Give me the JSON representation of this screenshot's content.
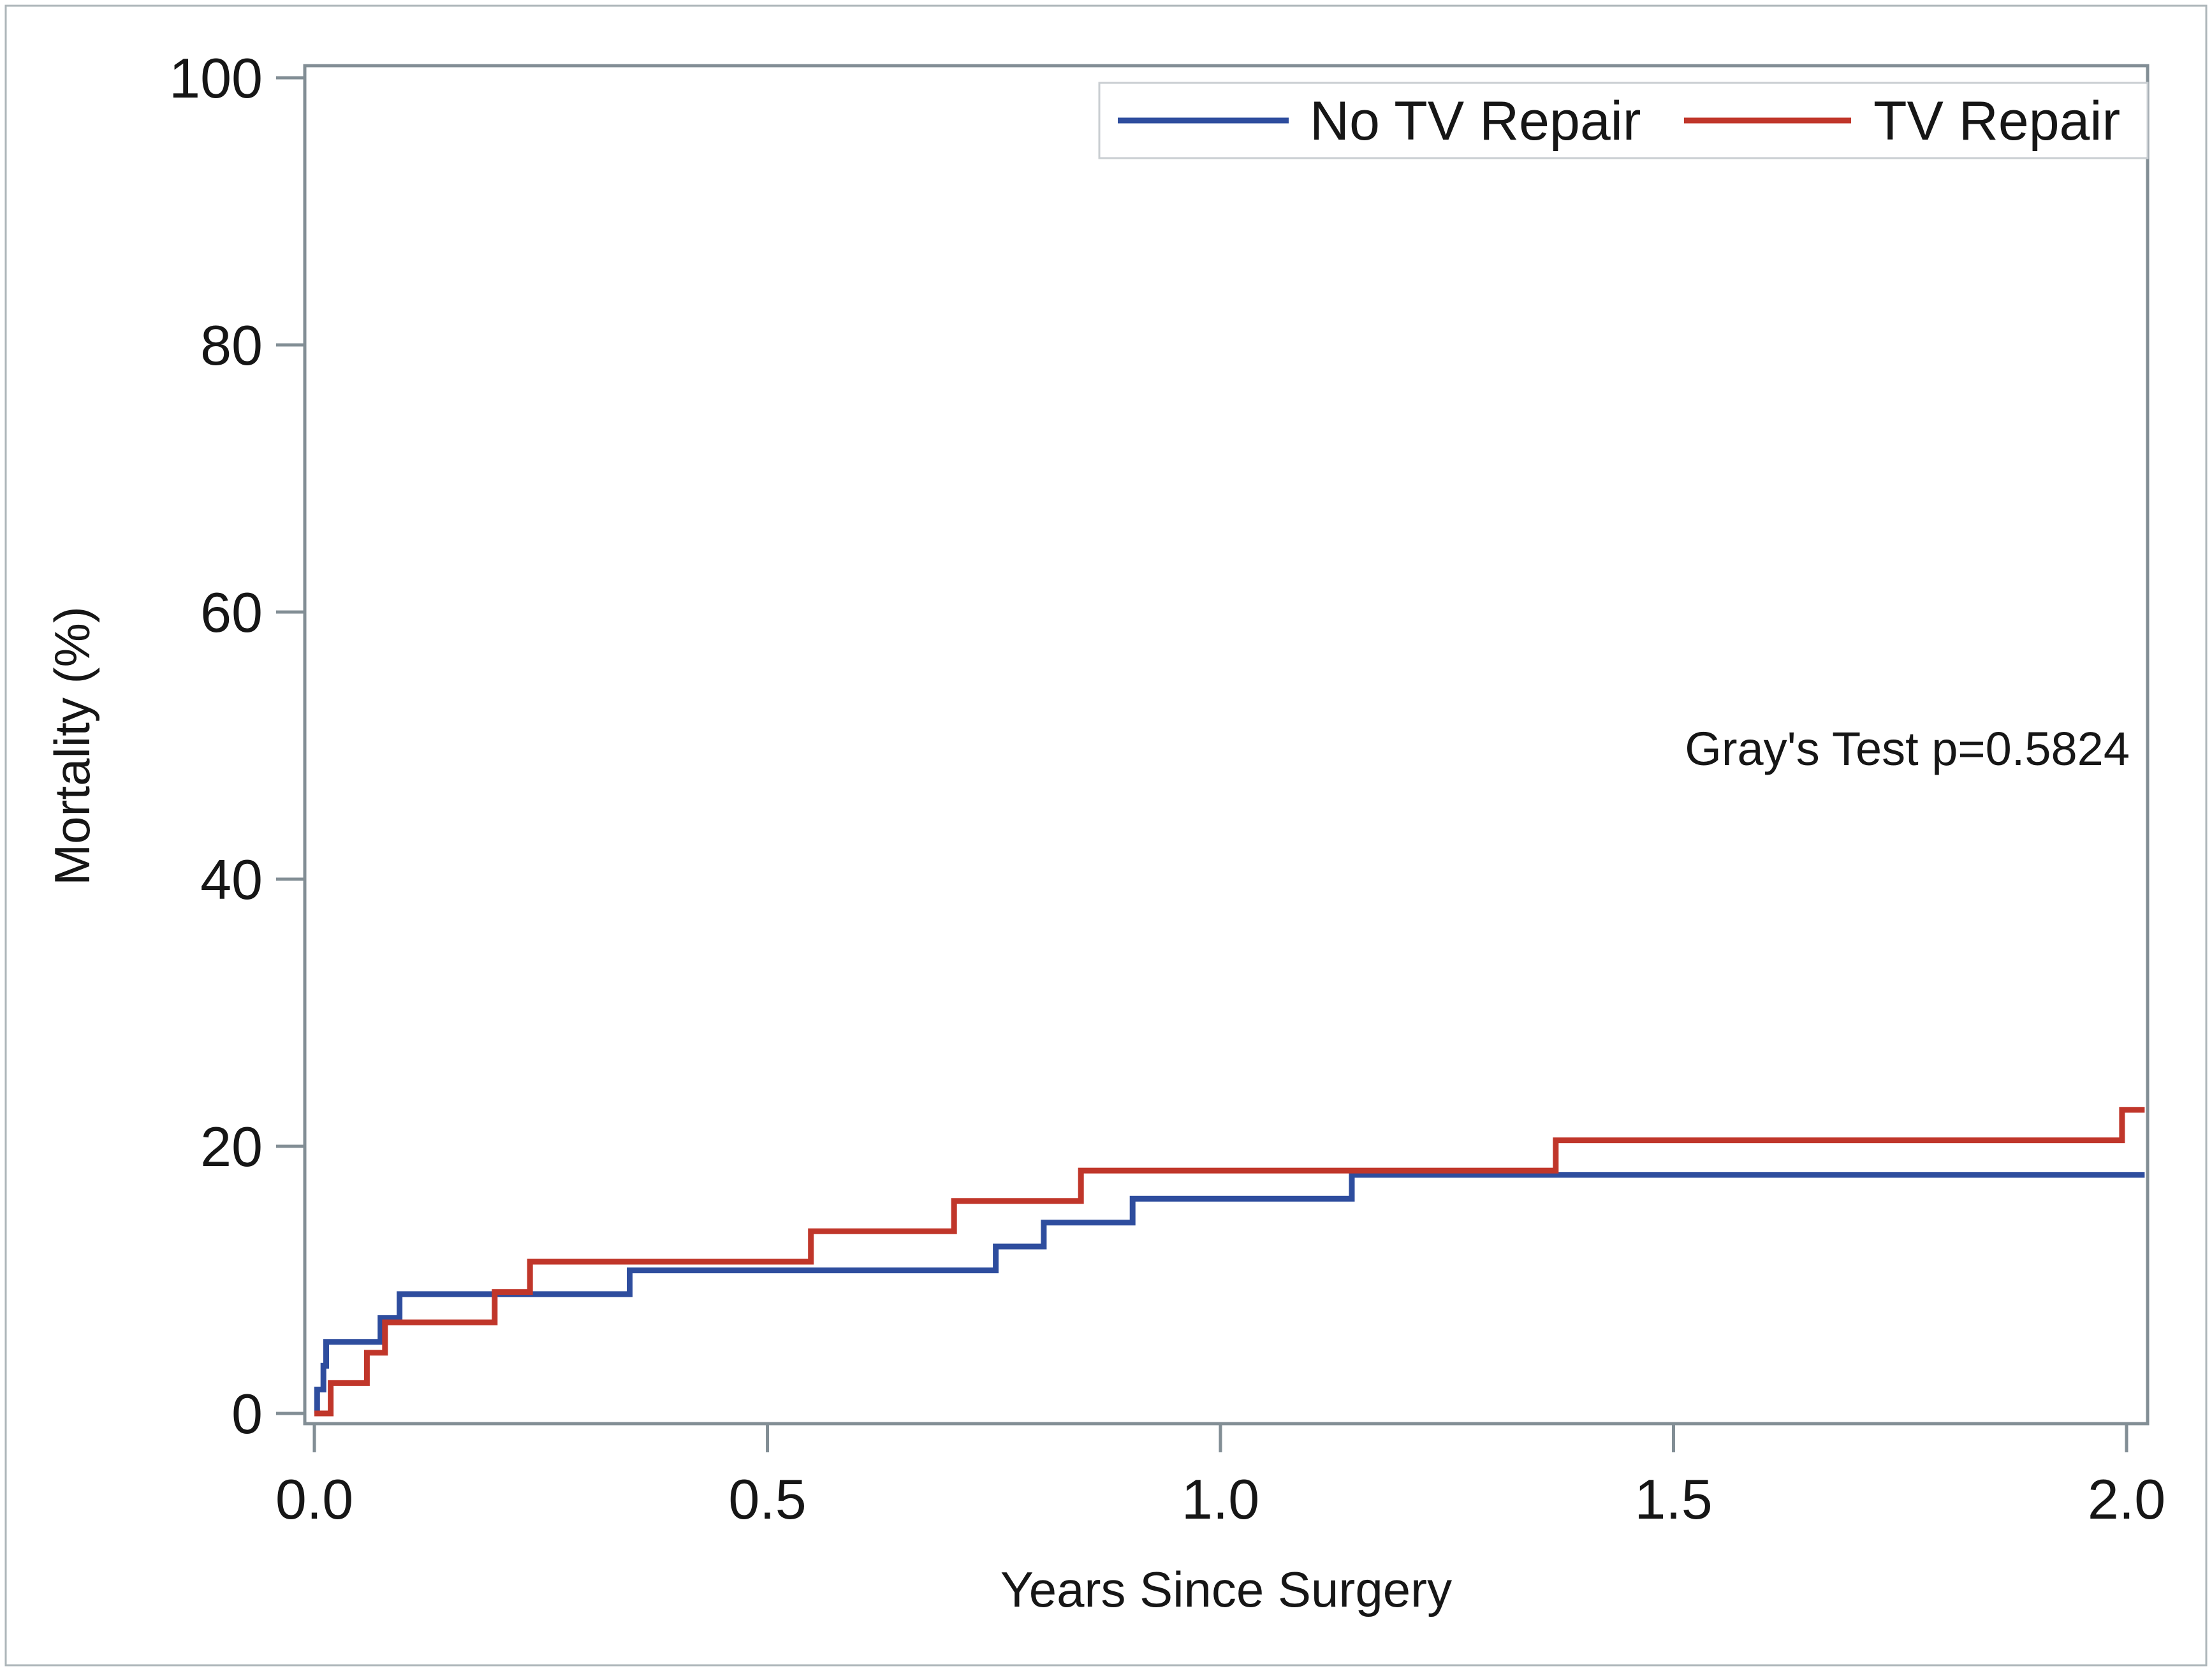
{
  "figure": {
    "background": "#ffffff",
    "border_color": "#ADB6BA",
    "axis_color": "#828E95",
    "text_color": "#161616"
  },
  "chart_data": {
    "type": "line",
    "subtype": "step-cumulative-incidence",
    "title": "",
    "xlabel": "Years Since Surgery",
    "ylabel": "Mortality (%)",
    "xlim": [
      0.0,
      2.0
    ],
    "ylim": [
      0,
      100
    ],
    "x_ticks": [
      0.0,
      0.5,
      1.0,
      1.5,
      2.0
    ],
    "x_tick_labels": [
      "0.0",
      "0.5",
      "1.0",
      "1.5",
      "2.0"
    ],
    "y_ticks": [
      0,
      20,
      40,
      60,
      80,
      100
    ],
    "y_tick_labels": [
      "0",
      "20",
      "40",
      "60",
      "80",
      "100"
    ],
    "grid": false,
    "legend_position": "top-right-inside",
    "annotation": "Gray's Test p=0.5824",
    "series": [
      {
        "name": "No TV Repair",
        "color": "#2E4D9E",
        "points": [
          [
            0.0,
            0.0
          ],
          [
            0.003,
            1.79
          ],
          [
            0.01,
            3.57
          ],
          [
            0.013,
            5.36
          ],
          [
            0.073,
            7.14
          ],
          [
            0.094,
            8.93
          ],
          [
            0.348,
            10.71
          ],
          [
            0.752,
            12.5
          ],
          [
            0.805,
            14.29
          ],
          [
            0.903,
            16.07
          ],
          [
            1.145,
            17.86
          ],
          [
            2.02,
            17.86
          ]
        ]
      },
      {
        "name": "TV Repair",
        "color": "#C0362A",
        "points": [
          [
            0.0,
            0.0
          ],
          [
            0.018,
            2.27
          ],
          [
            0.058,
            4.55
          ],
          [
            0.078,
            6.82
          ],
          [
            0.199,
            9.09
          ],
          [
            0.238,
            11.36
          ],
          [
            0.548,
            13.64
          ],
          [
            0.706,
            15.91
          ],
          [
            0.846,
            18.18
          ],
          [
            1.37,
            20.45
          ],
          [
            1.995,
            22.73
          ],
          [
            2.02,
            22.73
          ]
        ]
      }
    ]
  }
}
